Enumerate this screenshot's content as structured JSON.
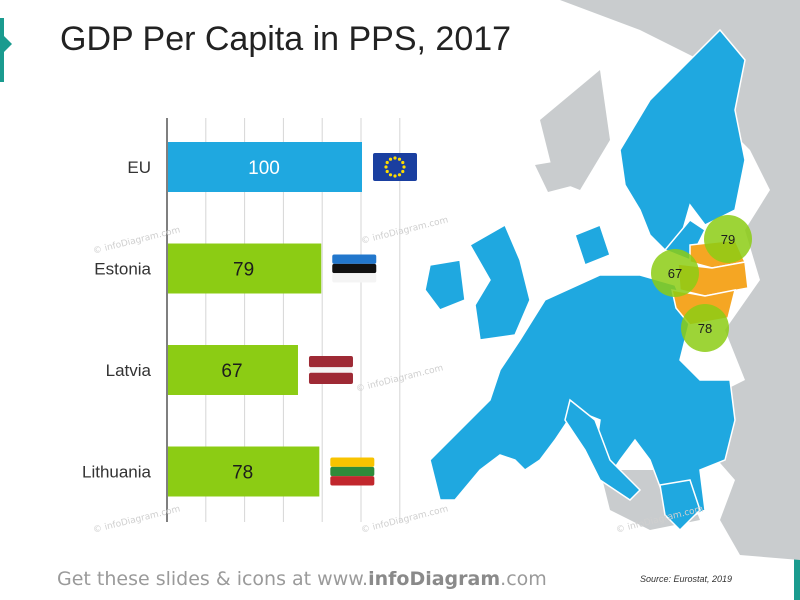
{
  "title": "GDP Per Capita in PPS, 2017",
  "chart_data": {
    "type": "bar",
    "orientation": "horizontal",
    "categories": [
      "EU",
      "Estonia",
      "Latvia",
      "Lithuania"
    ],
    "values": [
      100,
      79,
      67,
      78
    ],
    "colors": [
      "#1fa8e0",
      "#8ccc14",
      "#8ccc14",
      "#8ccc14"
    ],
    "grid": true,
    "value_labels": true,
    "flags": [
      "eu-flag-icon",
      "estonia-flag-icon",
      "latvia-flag-icon",
      "lithuania-flag-icon"
    ]
  },
  "map": {
    "highlight_color": "#f5a623",
    "eu_color": "#1fa8e0",
    "other_color": "#c9ccce",
    "bubble_color": "#8ccc14",
    "bubbles": [
      {
        "country": "Estonia",
        "value": "79"
      },
      {
        "country": "Latvia",
        "value": "67"
      },
      {
        "country": "Lithuania",
        "value": "78"
      }
    ]
  },
  "footer": {
    "prefix": "Get these slides & icons at www.",
    "brand": "infoDiagram",
    "suffix": ".com"
  },
  "source": "Source: Eurostat, 2019",
  "watermark": "© infoDiagram.com"
}
